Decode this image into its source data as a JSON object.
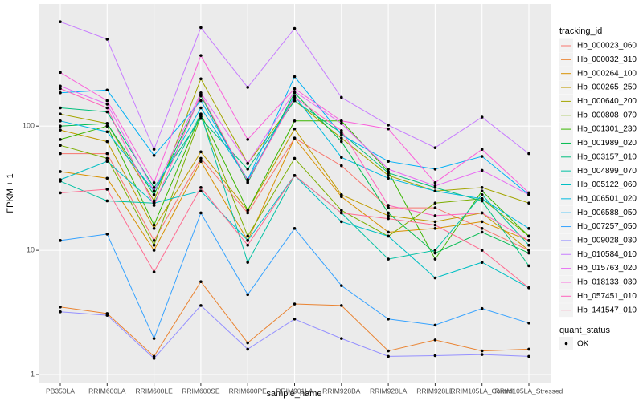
{
  "chart_data": {
    "type": "line",
    "log_scale": true,
    "grid": true,
    "x_label": "sample_name",
    "y_label": "FPKM + 1",
    "categories": [
      "PB350LA",
      "RRIM600LA",
      "RRIM600LE",
      "RRIM600SE",
      "RRIM600PE",
      "RRIM901LA",
      "RRIM928BA",
      "RRIM928LA",
      "RRIM928LE",
      "RRIM105LA_Control",
      "RRIM105LA_Stressed"
    ],
    "ylim": [
      0.85,
      960
    ],
    "yticks": [
      1,
      10,
      100
    ],
    "legend_title": "tracking_id",
    "point_legend_title": "quant_status",
    "point_legend_label": "OK",
    "point_color": "#000000",
    "series": [
      {
        "name": "Hb_000023_060",
        "color": "#F8766D",
        "values": [
          60,
          60,
          12,
          55,
          20,
          80,
          48,
          22,
          22,
          15,
          10
        ]
      },
      {
        "name": "Hb_000032_310",
        "color": "#EA8331",
        "values": [
          3.5,
          3.1,
          1.4,
          5.6,
          1.8,
          3.7,
          3.6,
          1.55,
          1.9,
          1.55,
          1.6
        ]
      },
      {
        "name": "Hb_000264_100",
        "color": "#D89000",
        "values": [
          43,
          38,
          10,
          52,
          12,
          80,
          27,
          14,
          15,
          17,
          12
        ]
      },
      {
        "name": "Hb_000265_250",
        "color": "#C09B00",
        "values": [
          93,
          75,
          15,
          62,
          21,
          95,
          28,
          19,
          17,
          20,
          10
        ]
      },
      {
        "name": "Hb_000640_200",
        "color": "#A3A500",
        "values": [
          125,
          105,
          25,
          240,
          50,
          160,
          80,
          40,
          30,
          32,
          24
        ]
      },
      {
        "name": "Hb_000808_070",
        "color": "#7CAE00",
        "values": [
          70,
          55,
          11,
          120,
          13,
          55,
          21,
          13,
          24,
          26,
          13
        ]
      },
      {
        "name": "Hb_001301_230",
        "color": "#39B600",
        "values": [
          78,
          100,
          16,
          125,
          21,
          110,
          110,
          43,
          8.5,
          30,
          13
        ]
      },
      {
        "name": "Hb_001989_020",
        "color": "#00BB4E",
        "values": [
          100,
          105,
          28,
          175,
          35,
          185,
          75,
          20,
          9.5,
          14,
          9.5
        ]
      },
      {
        "name": "Hb_003157_010",
        "color": "#00BF7D",
        "values": [
          140,
          130,
          32,
          115,
          45,
          160,
          88,
          42,
          32,
          25,
          7.5
        ]
      },
      {
        "name": "Hb_004899_070",
        "color": "#00C1A3",
        "values": [
          36,
          25,
          24,
          125,
          8,
          40,
          20,
          8.5,
          10,
          28,
          11
        ]
      },
      {
        "name": "Hb_005122_060",
        "color": "#00BFC4",
        "values": [
          37,
          52,
          24,
          30,
          12,
          40,
          17,
          13,
          6,
          8,
          5
        ]
      },
      {
        "name": "Hb_006501_020",
        "color": "#00BAE0",
        "values": [
          110,
          90,
          30,
          140,
          37,
          175,
          56,
          38,
          30,
          26,
          15
        ]
      },
      {
        "name": "Hb_006588_050",
        "color": "#00B0F6",
        "values": [
          185,
          195,
          58,
          160,
          37,
          250,
          85,
          52,
          45,
          57,
          28
        ]
      },
      {
        "name": "Hb_007257_050",
        "color": "#35A2FF",
        "values": [
          12,
          13.5,
          1.95,
          20,
          4.4,
          15,
          5.2,
          2.8,
          2.5,
          3.4,
          2.6
        ]
      },
      {
        "name": "Hb_009028_030",
        "color": "#9590FF",
        "values": [
          3.2,
          3.0,
          1.35,
          3.6,
          1.6,
          2.8,
          1.95,
          1.4,
          1.42,
          1.45,
          1.4
        ]
      },
      {
        "name": "Hb_010584_010",
        "color": "#C77CFF",
        "values": [
          690,
          500,
          65,
          620,
          205,
          610,
          170,
          102,
          67,
          118,
          60
        ]
      },
      {
        "name": "Hb_015763_020",
        "color": "#E76BF3",
        "values": [
          210,
          150,
          30,
          185,
          50,
          190,
          105,
          45,
          33,
          44,
          28
        ]
      },
      {
        "name": "Hb_018133_030",
        "color": "#FA62DB",
        "values": [
          270,
          160,
          35,
          370,
          78,
          200,
          110,
          95,
          35,
          65,
          29
        ]
      },
      {
        "name": "Hb_057451_010",
        "color": "#FF62BC",
        "values": [
          200,
          140,
          23,
          180,
          36,
          170,
          92,
          23,
          19,
          20,
          12
        ]
      },
      {
        "name": "Hb_141547_010",
        "color": "#FF6C91",
        "values": [
          29,
          31,
          6.7,
          32,
          11,
          40,
          20,
          18,
          16,
          10,
          5
        ]
      }
    ]
  }
}
